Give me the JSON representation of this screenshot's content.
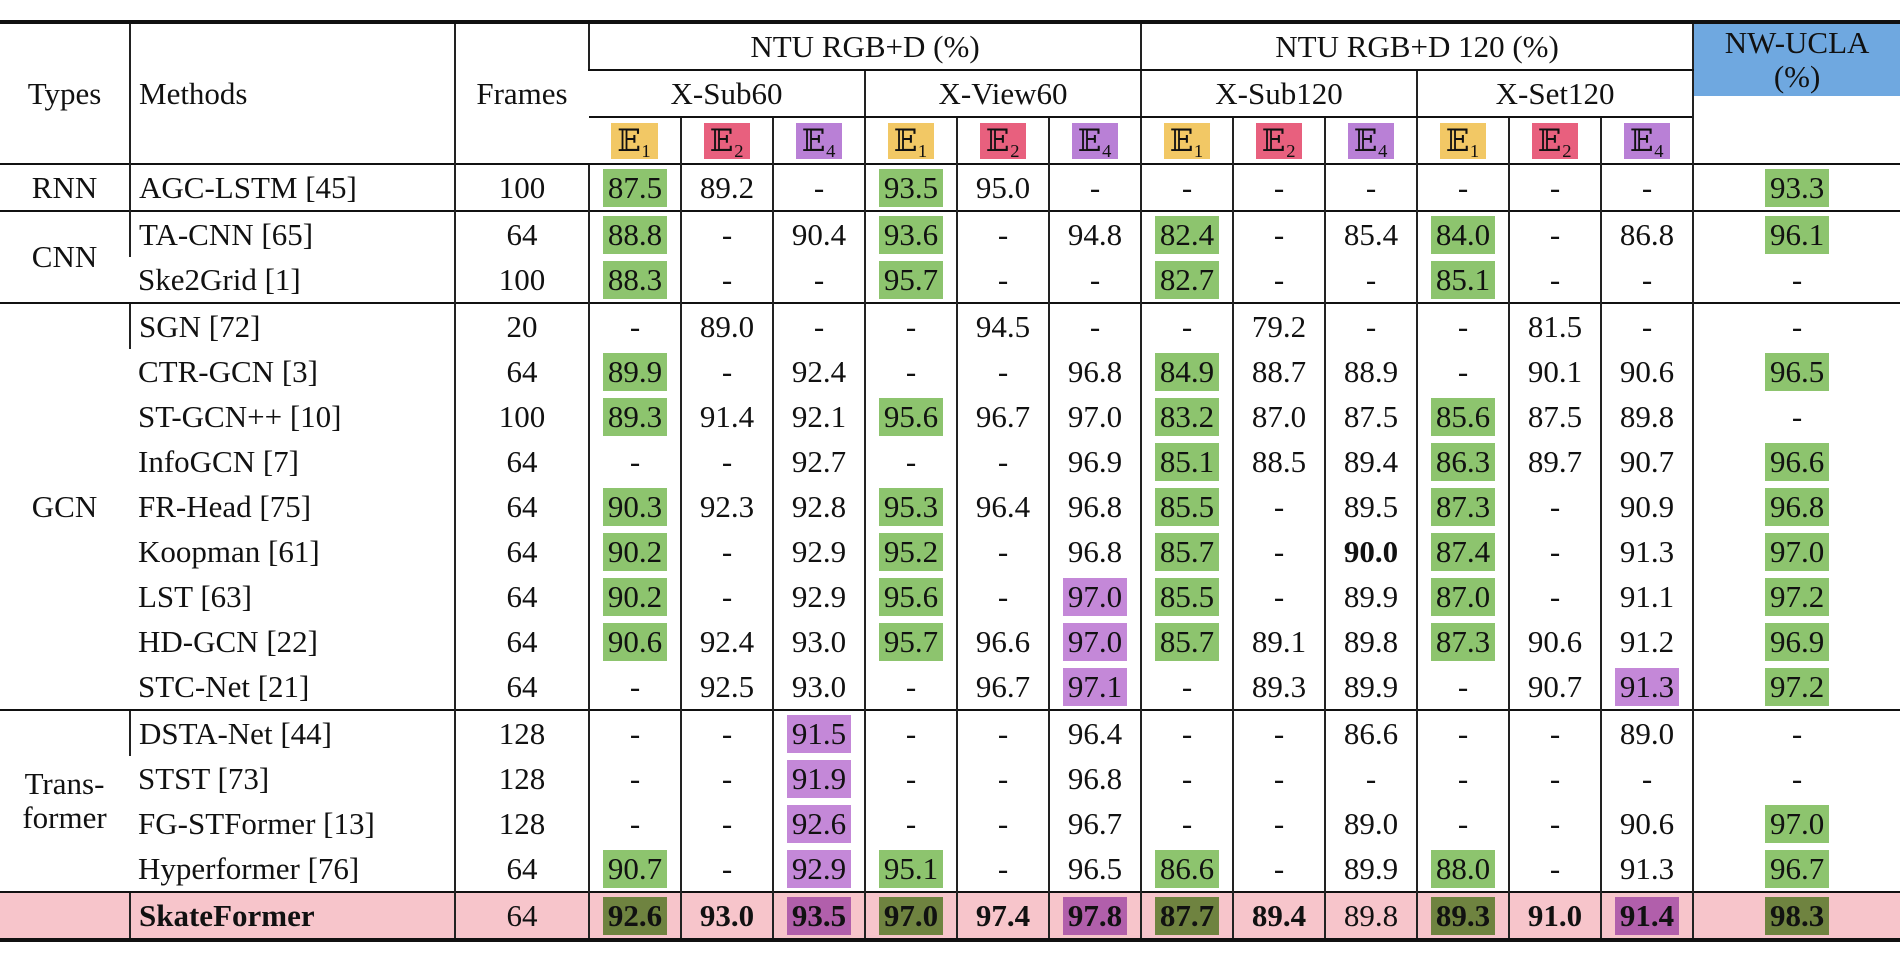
{
  "header": {
    "types": "Types",
    "methods": "Methods",
    "frames": "Frames",
    "datasets": [
      {
        "title": "NTU RGB+D (%)",
        "splits": [
          "X-Sub60",
          "X-View60"
        ]
      },
      {
        "title": "NTU RGB+D 120 (%)",
        "splits": [
          "X-Sub120",
          "X-Set120"
        ]
      }
    ],
    "extra": "NW-UCLA (%)",
    "metrics": [
      {
        "label": "𝔼₁",
        "color": "#f2c865"
      },
      {
        "label": "𝔼₂",
        "color": "#e8607e"
      },
      {
        "label": "𝔼₄",
        "color": "#b980d6"
      }
    ]
  },
  "groups": [
    {
      "type": "RNN",
      "rows": [
        {
          "method": "AGC-LSTM",
          "ref": "[45]",
          "frames": "100",
          "values": [
            "87.5",
            "89.2",
            "-",
            "93.5",
            "95.0",
            "-",
            "-",
            "-",
            "-",
            "-",
            "-",
            "-",
            "93.3"
          ],
          "styles": [
            "green",
            null,
            null,
            "green",
            null,
            null,
            null,
            null,
            null,
            null,
            null,
            null,
            "green"
          ]
        }
      ]
    },
    {
      "type": "CNN",
      "rows": [
        {
          "method": "TA-CNN",
          "ref": "[65]",
          "frames": "64",
          "values": [
            "88.8",
            "-",
            "90.4",
            "93.6",
            "-",
            "94.8",
            "82.4",
            "-",
            "85.4",
            "84.0",
            "-",
            "86.8",
            "96.1"
          ],
          "styles": [
            "green",
            null,
            null,
            "green",
            null,
            null,
            "green",
            null,
            null,
            "green",
            null,
            null,
            "green"
          ]
        },
        {
          "method": "Ske2Grid",
          "ref": "[1]",
          "frames": "100",
          "values": [
            "88.3",
            "-",
            "-",
            "95.7",
            "-",
            "-",
            "82.7",
            "-",
            "-",
            "85.1",
            "-",
            "-",
            "-"
          ],
          "styles": [
            "green",
            null,
            null,
            "green",
            null,
            null,
            "green",
            null,
            null,
            "green",
            null,
            null,
            null
          ]
        }
      ]
    },
    {
      "type": "GCN",
      "rows": [
        {
          "method": "SGN",
          "ref": "[72]",
          "frames": "20",
          "values": [
            "-",
            "89.0",
            "-",
            "-",
            "94.5",
            "-",
            "-",
            "79.2",
            "-",
            "-",
            "81.5",
            "-",
            "-"
          ],
          "styles": [
            null,
            null,
            null,
            null,
            null,
            null,
            null,
            null,
            null,
            null,
            null,
            null,
            null
          ]
        },
        {
          "method": "CTR-GCN",
          "ref": "[3]",
          "frames": "64",
          "values": [
            "89.9",
            "-",
            "92.4",
            "-",
            "-",
            "96.8",
            "84.9",
            "88.7",
            "88.9",
            "-",
            "90.1",
            "90.6",
            "96.5"
          ],
          "styles": [
            "green",
            null,
            null,
            null,
            null,
            null,
            "green",
            null,
            null,
            null,
            null,
            null,
            "green"
          ]
        },
        {
          "method": "ST-GCN++",
          "ref": "[10]",
          "frames": "100",
          "values": [
            "89.3",
            "91.4",
            "92.1",
            "95.6",
            "96.7",
            "97.0",
            "83.2",
            "87.0",
            "87.5",
            "85.6",
            "87.5",
            "89.8",
            "-"
          ],
          "styles": [
            "green",
            null,
            null,
            "green",
            null,
            null,
            "green",
            null,
            null,
            "green",
            null,
            null,
            null
          ]
        },
        {
          "method": "InfoGCN",
          "ref": "[7]",
          "frames": "64",
          "values": [
            "-",
            "-",
            "92.7",
            "-",
            "-",
            "96.9",
            "85.1",
            "88.5",
            "89.4",
            "86.3",
            "89.7",
            "90.7",
            "96.6"
          ],
          "styles": [
            null,
            null,
            null,
            null,
            null,
            null,
            "green",
            null,
            null,
            "green",
            null,
            null,
            "green"
          ]
        },
        {
          "method": "FR-Head",
          "ref": "[75]",
          "frames": "64",
          "values": [
            "90.3",
            "92.3",
            "92.8",
            "95.3",
            "96.4",
            "96.8",
            "85.5",
            "-",
            "89.5",
            "87.3",
            "-",
            "90.9",
            "96.8"
          ],
          "styles": [
            "green",
            null,
            null,
            "green",
            null,
            null,
            "green",
            null,
            null,
            "green",
            null,
            null,
            "green"
          ]
        },
        {
          "method": "Koopman",
          "ref": "[61]",
          "frames": "64",
          "values": [
            "90.2",
            "-",
            "92.9",
            "95.2",
            "-",
            "96.8",
            "85.7",
            "-",
            "90.0",
            "87.4",
            "-",
            "91.3",
            "97.0"
          ],
          "styles": [
            "green",
            null,
            null,
            "green",
            null,
            null,
            "green",
            null,
            "bold",
            "green",
            null,
            null,
            "green"
          ]
        },
        {
          "method": "LST",
          "ref": "[63]",
          "frames": "64",
          "values": [
            "90.2",
            "-",
            "92.9",
            "95.6",
            "-",
            "97.0",
            "85.5",
            "-",
            "89.9",
            "87.0",
            "-",
            "91.1",
            "97.2"
          ],
          "styles": [
            "green",
            null,
            null,
            "green",
            null,
            "purple",
            "green",
            null,
            null,
            "green",
            null,
            null,
            "green"
          ]
        },
        {
          "method": "HD-GCN",
          "ref": "[22]",
          "frames": "64",
          "values": [
            "90.6",
            "92.4",
            "93.0",
            "95.7",
            "96.6",
            "97.0",
            "85.7",
            "89.1",
            "89.8",
            "87.3",
            "90.6",
            "91.2",
            "96.9"
          ],
          "styles": [
            "green",
            null,
            null,
            "green",
            null,
            "purple",
            "green",
            null,
            null,
            "green",
            null,
            null,
            "green"
          ]
        },
        {
          "method": "STC-Net",
          "ref": "[21]",
          "frames": "64",
          "values": [
            "-",
            "92.5",
            "93.0",
            "-",
            "96.7",
            "97.1",
            "-",
            "89.3",
            "89.9",
            "-",
            "90.7",
            "91.3",
            "97.2"
          ],
          "styles": [
            null,
            null,
            null,
            null,
            null,
            "purple",
            null,
            null,
            null,
            null,
            null,
            "purple",
            "green"
          ]
        }
      ]
    },
    {
      "type": "Trans-\nformer",
      "rows": [
        {
          "method": "DSTA-Net",
          "ref": "[44]",
          "frames": "128",
          "values": [
            "-",
            "-",
            "91.5",
            "-",
            "-",
            "96.4",
            "-",
            "-",
            "86.6",
            "-",
            "-",
            "89.0",
            "-"
          ],
          "styles": [
            null,
            null,
            "purple",
            null,
            null,
            null,
            null,
            null,
            null,
            null,
            null,
            null,
            null
          ]
        },
        {
          "method": "STST",
          "ref": "[73]",
          "frames": "128",
          "values": [
            "-",
            "-",
            "91.9",
            "-",
            "-",
            "96.8",
            "-",
            "-",
            "-",
            "-",
            "-",
            "-",
            "-"
          ],
          "styles": [
            null,
            null,
            "purple",
            null,
            null,
            null,
            null,
            null,
            null,
            null,
            null,
            null,
            null
          ]
        },
        {
          "method": "FG-STFormer",
          "ref": "[13]",
          "frames": "128",
          "values": [
            "-",
            "-",
            "92.6",
            "-",
            "-",
            "96.7",
            "-",
            "-",
            "89.0",
            "-",
            "-",
            "90.6",
            "97.0"
          ],
          "styles": [
            null,
            null,
            "purple",
            null,
            null,
            null,
            null,
            null,
            null,
            null,
            null,
            null,
            "green"
          ]
        },
        {
          "method": "Hyperformer",
          "ref": "[76]",
          "frames": "64",
          "values": [
            "90.7",
            "-",
            "92.9",
            "95.1",
            "-",
            "96.5",
            "86.6",
            "-",
            "89.9",
            "88.0",
            "-",
            "91.3",
            "96.7"
          ],
          "styles": [
            "green",
            null,
            "purple",
            "green",
            null,
            null,
            "green",
            null,
            null,
            "green",
            null,
            null,
            "green"
          ]
        }
      ]
    }
  ],
  "final": {
    "method": "SkateFormer",
    "frames": "64",
    "values": [
      "92.6",
      "93.0",
      "93.5",
      "97.0",
      "97.4",
      "97.8",
      "87.7",
      "89.4",
      "89.8",
      "89.3",
      "91.0",
      "91.4",
      "98.3"
    ],
    "styles": [
      "green-dark",
      "bold",
      "purple-dark",
      "green-dark",
      "bold",
      "purple-dark",
      "green-dark",
      "bold",
      null,
      "green-dark",
      "bold",
      "purple-dark",
      "green-dark"
    ]
  }
}
